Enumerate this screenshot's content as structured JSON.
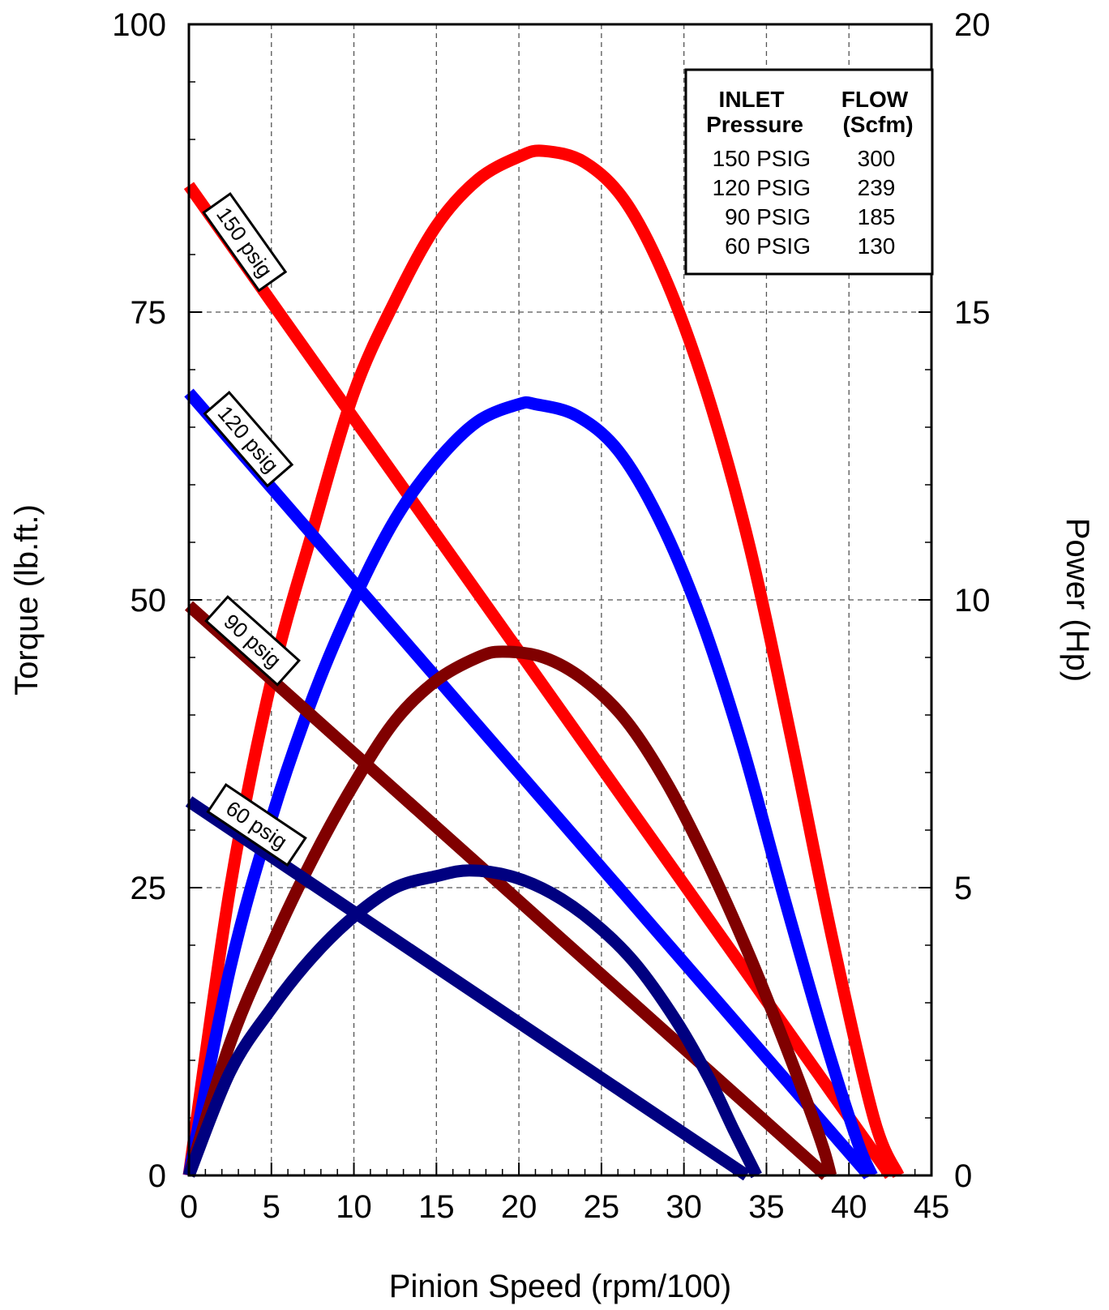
{
  "chart_data": {
    "type": "line",
    "xlabel": "Pinion Speed (rpm/100)",
    "ylabel": "Torque (lb.ft.)",
    "y2label": "Power (Hp)",
    "xlim": [
      0,
      45
    ],
    "ylim": [
      0,
      100
    ],
    "y2lim": [
      0,
      20
    ],
    "x_ticks": [
      0,
      5,
      10,
      15,
      20,
      25,
      30,
      35,
      40,
      45
    ],
    "y_ticks": [
      0,
      25,
      50,
      75,
      100
    ],
    "y2_ticks": [
      0,
      5,
      10,
      15,
      20
    ],
    "x_tick_labels": [
      "0",
      "5",
      "10",
      "15",
      "20",
      "25",
      "30",
      "35",
      "40",
      "45"
    ],
    "y_tick_labels": [
      "0",
      "25",
      "50",
      "75",
      "100"
    ],
    "y2_tick_labels": [
      "0",
      "5",
      "10",
      "15",
      "20"
    ],
    "grid": true,
    "legend": {
      "position": "top-right",
      "header": [
        "INLET",
        "Pressure",
        "FLOW",
        "(Scfm)"
      ],
      "rows": [
        {
          "pressure": "150 PSIG",
          "flow": "300"
        },
        {
          "pressure": "120 PSIG",
          "flow": "239"
        },
        {
          "pressure": "90 PSIG",
          "flow": "185"
        },
        {
          "pressure": "60 PSIG",
          "flow": "130"
        }
      ]
    },
    "series": [
      {
        "name": "150 psig",
        "color": "#ff0000",
        "torque_line": [
          [
            0,
            86
          ],
          [
            42.5,
            0
          ]
        ],
        "power_curve": [
          [
            0,
            0
          ],
          [
            2.5,
            5
          ],
          [
            5,
            8.6
          ],
          [
            7.5,
            11.2
          ],
          [
            10,
            13.6
          ],
          [
            12.5,
            15.2
          ],
          [
            15,
            16.5
          ],
          [
            17.5,
            17.3
          ],
          [
            20,
            17.7
          ],
          [
            21.5,
            17.8
          ],
          [
            24,
            17.6
          ],
          [
            26.5,
            16.9
          ],
          [
            29,
            15.5
          ],
          [
            31.5,
            13.5
          ],
          [
            34,
            10.9
          ],
          [
            36.5,
            7.6
          ],
          [
            39,
            4.1
          ],
          [
            41.5,
            1.0
          ],
          [
            43,
            0
          ]
        ]
      },
      {
        "name": "120 psig",
        "color": "#0000ff",
        "torque_line": [
          [
            0,
            68
          ],
          [
            41.2,
            0
          ]
        ],
        "power_curve": [
          [
            0,
            0
          ],
          [
            2.5,
            3.6
          ],
          [
            5,
            6.2
          ],
          [
            7.5,
            8.3
          ],
          [
            10,
            10.0
          ],
          [
            12.5,
            11.4
          ],
          [
            15,
            12.4
          ],
          [
            17.5,
            13.1
          ],
          [
            20,
            13.4
          ],
          [
            21,
            13.4
          ],
          [
            23.5,
            13.2
          ],
          [
            26,
            12.6
          ],
          [
            28.5,
            11.4
          ],
          [
            31,
            9.7
          ],
          [
            33.5,
            7.5
          ],
          [
            36,
            4.9
          ],
          [
            38.5,
            2.4
          ],
          [
            40.5,
            0.6
          ],
          [
            41.4,
            0
          ]
        ]
      },
      {
        "name": "90 psig",
        "color": "#800000",
        "torque_line": [
          [
            0,
            49.5
          ],
          [
            38.6,
            0
          ]
        ],
        "power_curve": [
          [
            0,
            0
          ],
          [
            2.5,
            2.3
          ],
          [
            5,
            4.0
          ],
          [
            7.5,
            5.5
          ],
          [
            10,
            6.8
          ],
          [
            12.5,
            7.9
          ],
          [
            15,
            8.6
          ],
          [
            17.5,
            9.0
          ],
          [
            19,
            9.1
          ],
          [
            21.5,
            9.0
          ],
          [
            24,
            8.6
          ],
          [
            26.5,
            7.9
          ],
          [
            29,
            6.8
          ],
          [
            31.5,
            5.4
          ],
          [
            34,
            3.8
          ],
          [
            36.5,
            2.0
          ],
          [
            38.3,
            0.6
          ],
          [
            38.9,
            0
          ]
        ]
      },
      {
        "name": "60 psig",
        "color": "#000080",
        "torque_line": [
          [
            0,
            32.5
          ],
          [
            33.8,
            0
          ]
        ],
        "power_curve": [
          [
            0,
            0
          ],
          [
            2.5,
            1.8
          ],
          [
            5,
            2.9
          ],
          [
            7.5,
            3.8
          ],
          [
            10,
            4.5
          ],
          [
            12.5,
            5.0
          ],
          [
            15,
            5.2
          ],
          [
            17,
            5.3
          ],
          [
            19.5,
            5.2
          ],
          [
            22,
            4.9
          ],
          [
            24.5,
            4.4
          ],
          [
            27,
            3.7
          ],
          [
            29.5,
            2.7
          ],
          [
            31.5,
            1.7
          ],
          [
            33,
            0.8
          ],
          [
            34.4,
            0
          ]
        ]
      }
    ]
  }
}
